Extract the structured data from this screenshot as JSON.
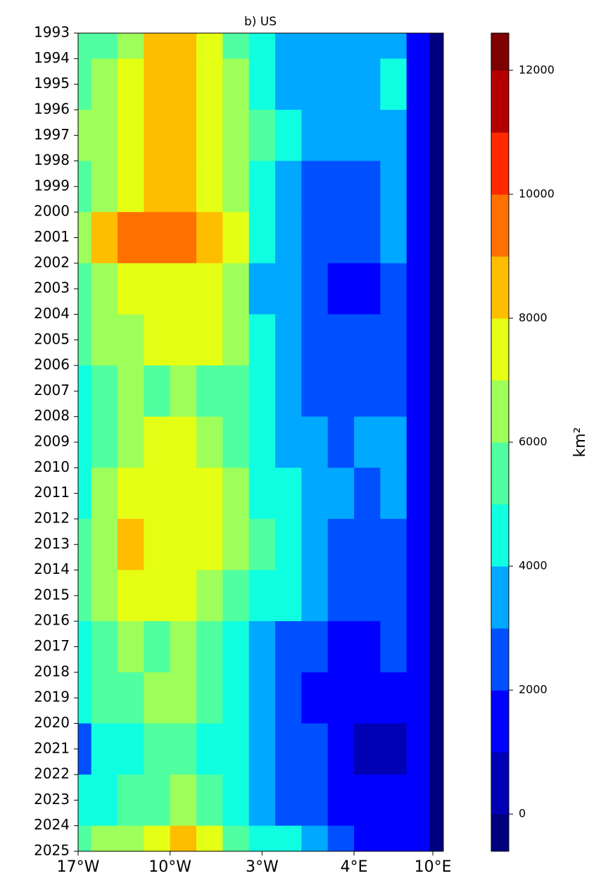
{
  "chart_data": {
    "type": "contour",
    "title": "b) US",
    "colorbar_label": "km²",
    "x": [
      -17,
      -15,
      -13,
      -11,
      -9,
      -7,
      -5,
      -3,
      -1,
      1,
      3,
      5,
      7,
      9,
      10.5
    ],
    "y": [
      1993,
      1995,
      1997,
      1999,
      2001,
      2003,
      2005,
      2007,
      2009,
      2011,
      2013,
      2015,
      2017,
      2019,
      2021,
      2023,
      2025
    ],
    "z": [
      [
        5500,
        5500,
        6500,
        8500,
        8500,
        7500,
        5500,
        4500,
        3500,
        3500,
        3500,
        3500,
        3500,
        1500,
        -300
      ],
      [
        5500,
        6500,
        7500,
        8500,
        8500,
        7500,
        6500,
        4500,
        3500,
        3500,
        3500,
        3500,
        4500,
        1500,
        -300
      ],
      [
        6500,
        6500,
        7500,
        8500,
        8500,
        7500,
        6500,
        5500,
        4500,
        3500,
        3500,
        3500,
        3500,
        1500,
        -300
      ],
      [
        5500,
        6500,
        7500,
        8500,
        8500,
        7500,
        6500,
        4500,
        3500,
        2500,
        2500,
        2500,
        3500,
        1500,
        -300
      ],
      [
        6500,
        8500,
        9500,
        9500,
        9500,
        8500,
        7500,
        4500,
        3500,
        2500,
        2500,
        2500,
        3500,
        1500,
        -300
      ],
      [
        5500,
        6500,
        7500,
        7500,
        7500,
        7500,
        6500,
        3500,
        3500,
        2500,
        1500,
        1500,
        2500,
        1500,
        -300
      ],
      [
        5500,
        6500,
        6500,
        7500,
        7500,
        7500,
        6500,
        4500,
        3500,
        2500,
        2500,
        2500,
        2500,
        1500,
        -300
      ],
      [
        4500,
        5500,
        6500,
        5500,
        6500,
        5500,
        5500,
        4500,
        3500,
        2500,
        2500,
        2500,
        2500,
        1500,
        -300
      ],
      [
        4500,
        5500,
        6500,
        7500,
        7500,
        6500,
        5500,
        4500,
        3500,
        3500,
        2500,
        3500,
        3500,
        1500,
        -300
      ],
      [
        4500,
        6500,
        7500,
        7500,
        7500,
        7500,
        6500,
        4500,
        4500,
        3500,
        3500,
        2500,
        3500,
        1500,
        -300
      ],
      [
        5500,
        6500,
        8500,
        7500,
        7500,
        7500,
        6500,
        5500,
        4500,
        3500,
        2500,
        2500,
        2500,
        1500,
        -300
      ],
      [
        5500,
        6500,
        7500,
        7500,
        7500,
        6500,
        5500,
        4500,
        4500,
        3500,
        2500,
        2500,
        2500,
        1500,
        -300
      ],
      [
        4500,
        5500,
        6500,
        5500,
        6500,
        5500,
        4500,
        3500,
        2500,
        2500,
        1500,
        1500,
        2500,
        1500,
        -300
      ],
      [
        4500,
        5500,
        5500,
        6500,
        6500,
        5500,
        4500,
        3500,
        2500,
        1500,
        1500,
        1500,
        1500,
        1500,
        -300
      ],
      [
        2500,
        4500,
        4500,
        5500,
        5500,
        4500,
        4500,
        3500,
        2500,
        2500,
        1500,
        500,
        500,
        1500,
        -300
      ],
      [
        4500,
        4500,
        5500,
        5500,
        6500,
        5500,
        4500,
        3500,
        2500,
        2500,
        1500,
        1500,
        1500,
        1500,
        -300
      ],
      [
        5500,
        6500,
        6500,
        7500,
        8500,
        7500,
        5500,
        4500,
        4500,
        3500,
        2500,
        1500,
        1500,
        1500,
        -300
      ]
    ],
    "levels": [
      -600,
      0,
      1000,
      2000,
      3000,
      4000,
      5000,
      6000,
      7000,
      8000,
      9000,
      10000,
      11000,
      12000,
      12600
    ],
    "colors": [
      "#00007f",
      "#0000b4",
      "#0000ff",
      "#0050ff",
      "#00a8ff",
      "#10ffe0",
      "#50ffa0",
      "#9eff5a",
      "#e4ff14",
      "#ffbd00",
      "#ff7000",
      "#ff2a00",
      "#b40000",
      "#7f0000"
    ],
    "xlim": [
      -17,
      10.8
    ],
    "xticks": [
      {
        "value": -17,
        "label": "17°W"
      },
      {
        "value": -10,
        "label": "10°W"
      },
      {
        "value": -3,
        "label": "3°W"
      },
      {
        "value": 4,
        "label": "4°E"
      },
      {
        "value": 10,
        "label": "10°E"
      }
    ],
    "ylim": [
      1993,
      2025
    ],
    "y_inverted": true,
    "yticks": [
      1993,
      1994,
      1995,
      1996,
      1997,
      1998,
      1999,
      2000,
      2001,
      2002,
      2003,
      2004,
      2005,
      2006,
      2007,
      2008,
      2009,
      2010,
      2011,
      2012,
      2013,
      2014,
      2015,
      2016,
      2017,
      2018,
      2019,
      2020,
      2021,
      2022,
      2023,
      2024,
      2025
    ],
    "colorbar_ticks": [
      0,
      2000,
      4000,
      6000,
      8000,
      10000,
      12000
    ]
  }
}
